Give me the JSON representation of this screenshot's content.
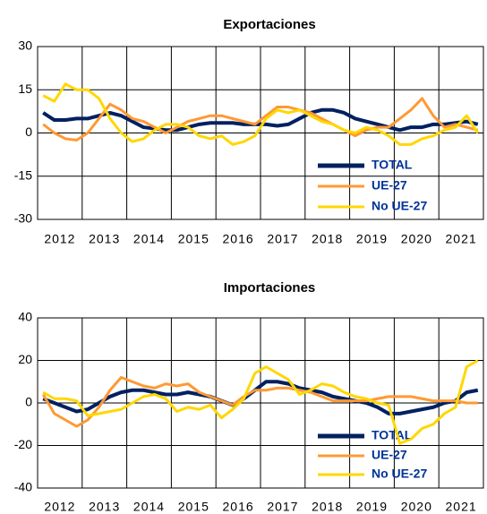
{
  "chart_data": [
    {
      "type": "line",
      "title": "Exportaciones",
      "categories": [
        "2012",
        "2013",
        "2014",
        "2015",
        "2016",
        "2017",
        "2018",
        "2019",
        "2020",
        "2021"
      ],
      "x": [
        2012.125,
        2012.375,
        2012.625,
        2012.875,
        2013.125,
        2013.375,
        2013.625,
        2013.875,
        2014.125,
        2014.375,
        2014.625,
        2014.875,
        2015.125,
        2015.375,
        2015.625,
        2015.875,
        2016.125,
        2016.375,
        2016.625,
        2016.875,
        2017.125,
        2017.375,
        2017.625,
        2017.875,
        2018.125,
        2018.375,
        2018.625,
        2018.875,
        2019.125,
        2019.375,
        2019.625,
        2019.875,
        2020.125,
        2020.375,
        2020.625,
        2020.875,
        2021.125,
        2021.375,
        2021.625,
        2021.875
      ],
      "xlim": [
        2012,
        2022
      ],
      "ylim": [
        -30,
        30
      ],
      "yticks": [
        -30,
        -15,
        0,
        15,
        30
      ],
      "grid": true,
      "legend": "lower right",
      "series": [
        {
          "name": "TOTAL",
          "color": "#002060",
          "values": [
            7,
            4.5,
            4.5,
            5,
            5,
            6,
            7,
            6,
            4,
            2,
            1.5,
            1,
            1,
            2,
            3,
            3.5,
            3.5,
            3.5,
            3,
            3,
            3,
            2.5,
            3,
            5,
            7,
            8,
            8,
            7,
            5,
            4,
            3,
            2,
            1,
            2,
            2,
            3,
            3,
            3.5,
            4,
            3
          ]
        },
        {
          "name": "UE-27",
          "color": "#ff9933",
          "values": [
            3,
            0,
            -2,
            -2.5,
            0,
            5,
            10,
            8,
            5,
            4,
            2,
            0,
            2,
            4,
            5,
            6,
            6,
            5,
            4,
            3,
            6,
            9,
            9,
            8,
            7,
            5,
            3,
            1,
            -1,
            1,
            2,
            2,
            5,
            8,
            12,
            6,
            2,
            3,
            2,
            1
          ]
        },
        {
          "name": "No UE-27",
          "color": "#ffd700",
          "values": [
            13,
            11,
            17,
            15,
            15,
            12,
            5,
            0,
            -3,
            -2,
            1,
            3,
            3,
            2,
            -1,
            -2,
            -1,
            -4,
            -3,
            -1,
            5,
            8,
            7,
            8,
            6,
            4,
            3,
            1,
            0,
            2,
            1,
            -1,
            -4,
            -4,
            -2,
            -1,
            1,
            2,
            6,
            0
          ]
        }
      ]
    },
    {
      "type": "line",
      "title": "Importaciones",
      "categories": [
        "2012",
        "2013",
        "2014",
        "2015",
        "2016",
        "2017",
        "2018",
        "2019",
        "2020",
        "2021"
      ],
      "x": [
        2012.125,
        2012.375,
        2012.625,
        2012.875,
        2013.125,
        2013.375,
        2013.625,
        2013.875,
        2014.125,
        2014.375,
        2014.625,
        2014.875,
        2015.125,
        2015.375,
        2015.625,
        2015.875,
        2016.125,
        2016.375,
        2016.625,
        2016.875,
        2017.125,
        2017.375,
        2017.625,
        2017.875,
        2018.125,
        2018.375,
        2018.625,
        2018.875,
        2019.125,
        2019.375,
        2019.625,
        2019.875,
        2020.125,
        2020.375,
        2020.625,
        2020.875,
        2021.125,
        2021.375,
        2021.625,
        2021.875
      ],
      "xlim": [
        2012,
        2022
      ],
      "ylim": [
        -40,
        40
      ],
      "yticks": [
        -40,
        -20,
        0,
        20,
        40
      ],
      "grid": true,
      "legend": "lower right",
      "series": [
        {
          "name": "TOTAL",
          "color": "#002060",
          "values": [
            2,
            0,
            -2,
            -4,
            -3,
            0,
            3,
            5,
            6,
            6,
            5,
            4,
            4,
            5,
            4,
            3,
            1,
            -1,
            2,
            6,
            10,
            10,
            9,
            7,
            6,
            5,
            3,
            2,
            1,
            0,
            -2,
            -5,
            -5,
            -4,
            -3,
            -2,
            0,
            1,
            5,
            6
          ]
        },
        {
          "name": "UE-27",
          "color": "#ff9933",
          "values": [
            4,
            -5,
            -8,
            -11,
            -8,
            -2,
            6,
            12,
            10,
            8,
            7,
            9,
            8,
            9,
            5,
            3,
            1,
            -1,
            3,
            6,
            6,
            7,
            7,
            6,
            5,
            3,
            1,
            1,
            1,
            1,
            2,
            3,
            3,
            3,
            2,
            1,
            1,
            1,
            0,
            0
          ]
        },
        {
          "name": "No UE-27",
          "color": "#ffd700",
          "values": [
            5,
            2,
            2,
            1,
            -6,
            -5,
            -4,
            -3,
            0,
            3,
            4,
            2,
            -4,
            -2,
            -3,
            -1,
            -7,
            -3,
            2,
            14,
            17,
            14,
            11,
            4,
            6,
            9,
            8,
            5,
            3,
            2,
            0,
            -1,
            -19,
            -17,
            -12,
            -10,
            -5,
            -2,
            17,
            20
          ]
        }
      ]
    }
  ]
}
